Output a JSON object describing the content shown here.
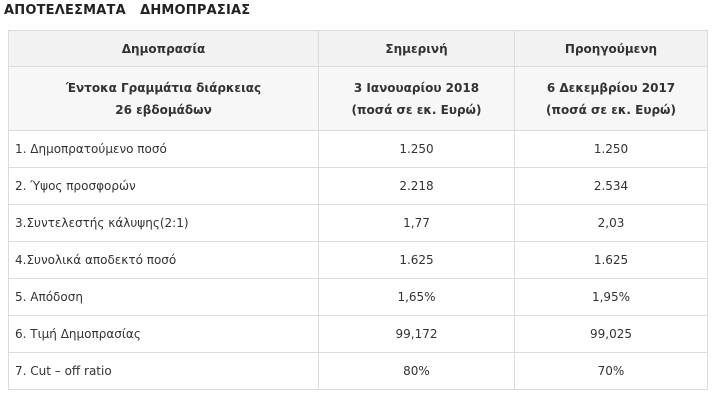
{
  "page": {
    "title": "ΑΠΟΤΕΛΕΣΜΑΤΑ   ΔΗΜΟΠΡΑΣΙΑΣ"
  },
  "table": {
    "headers": [
      "Δημοπρασία",
      "Σημερινή",
      "Προηγούμενη"
    ],
    "subheader": {
      "instrument_line1": "Έντοκα Γραμμάτια διάρκειας",
      "instrument_line2": "26 εβδομάδων",
      "current_date": "3 Ιανουαρίου 2018",
      "current_unit": "(ποσά σε εκ. Ευρώ)",
      "previous_date": "6 Δεκεμβρίου 2017",
      "previous_unit": "(ποσά σε εκ. Ευρώ)"
    },
    "rows": [
      {
        "label": "1. Δημοπρατούμενο ποσό",
        "current": "1.250",
        "previous": "1.250"
      },
      {
        "label": "2. Ύψος προσφορών",
        "current": "2.218",
        "previous": "2.534"
      },
      {
        "label": "3.Συντελεστής κάλυψης(2:1)",
        "current": "1,77",
        "previous": "2,03"
      },
      {
        "label": "4.Συνολικά αποδεκτό ποσό",
        "current": "1.625",
        "previous": "1.625"
      },
      {
        "label": "5. Απόδοση",
        "current": "1,65%",
        "previous": "1,95%"
      },
      {
        "label": "6. Τιμή Δημοπρασίας",
        "current": "99,172",
        "previous": "99,025"
      },
      {
        "label": "7. Cut – off ratio",
        "current": "80%",
        "previous": "70%"
      }
    ]
  }
}
